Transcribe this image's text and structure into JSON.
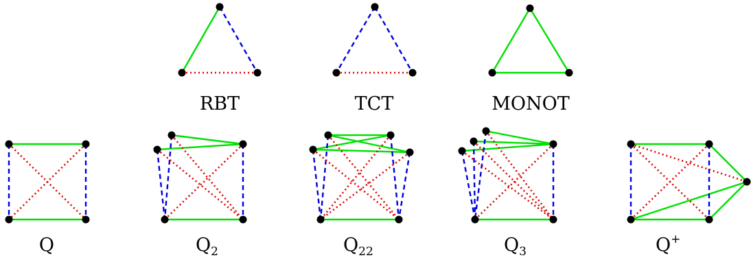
{
  "colors": {
    "green": "#00e000",
    "blue": "#0000dd",
    "red": "#dd0000",
    "node": "#000000"
  },
  "graphs": [
    {
      "id": "rbt",
      "label": "RBT",
      "sub": ""
    },
    {
      "id": "tct",
      "label": "TCT",
      "sub": ""
    },
    {
      "id": "monot",
      "label": "MONOT",
      "sub": ""
    },
    {
      "id": "q",
      "label": "Q",
      "sub": ""
    },
    {
      "id": "q2",
      "label": "Q",
      "sub": "2"
    },
    {
      "id": "q22",
      "label": "Q",
      "sub": "22"
    },
    {
      "id": "q3",
      "label": "Q",
      "sub": "3"
    },
    {
      "id": "qplus",
      "label": "Q",
      "sub": "+"
    }
  ]
}
